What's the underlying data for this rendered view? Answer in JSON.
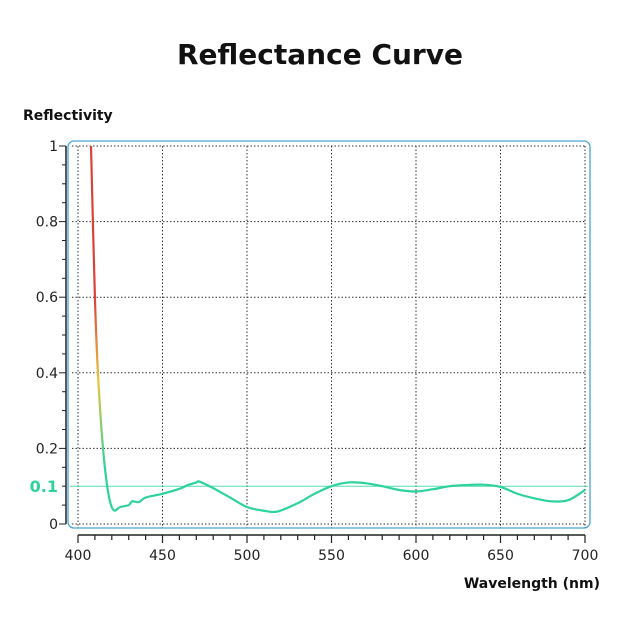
{
  "chart_data": {
    "type": "line",
    "title": "Reflectance Curve",
    "xlabel": "Wavelength (nm)",
    "ylabel": "Reflectivity",
    "xlim": [
      400,
      700
    ],
    "ylim": [
      0,
      1
    ],
    "xticks": [
      400,
      450,
      500,
      550,
      600,
      650,
      700
    ],
    "yticks": [
      "0",
      "0.2",
      "0.4",
      "0.6",
      "0.8",
      "1"
    ],
    "grid": true,
    "reference_line": {
      "value": 0.1,
      "label": "0.1",
      "color": "#2ed39a"
    },
    "curve_colors": {
      "high": "#d9413a",
      "mid": "#e8c53a",
      "low": "#2ed39a"
    },
    "frame_color": "#4aa3d6",
    "series": [
      {
        "x": [
          407.7,
          410,
          411.8,
          414.8,
          418,
          421,
          425,
          430,
          432,
          436,
          440,
          450,
          460,
          465,
          470,
          472,
          480,
          490,
          500,
          510,
          518,
          530,
          540,
          550,
          560,
          570,
          580,
          590,
          600,
          610,
          620,
          630,
          640,
          650,
          660,
          670,
          680,
          690,
          700
        ],
        "y": [
          1.0,
          0.6,
          0.4,
          0.2,
          0.08,
          0.037,
          0.045,
          0.05,
          0.06,
          0.058,
          0.07,
          0.08,
          0.093,
          0.103,
          0.11,
          0.112,
          0.095,
          0.07,
          0.045,
          0.035,
          0.033,
          0.055,
          0.08,
          0.1,
          0.11,
          0.108,
          0.1,
          0.09,
          0.086,
          0.092,
          0.1,
          0.103,
          0.104,
          0.098,
          0.08,
          0.068,
          0.06,
          0.063,
          0.09
        ]
      }
    ]
  }
}
